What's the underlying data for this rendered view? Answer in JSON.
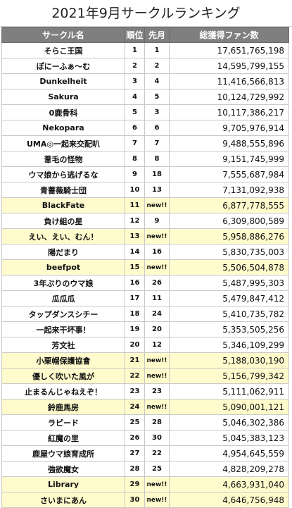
{
  "title": "2021年9月サークルランキング",
  "headers": {
    "name": "サークル名",
    "rank": "順位",
    "prev": "先月",
    "fans": "総獲得ファン数"
  },
  "highlight_color": "#fffbcc",
  "header_color": "#7f7f7f",
  "rows": [
    {
      "name": "そらこ王国",
      "rank": "1",
      "prev": "1",
      "fans": "17,651,765,198",
      "highlight": false
    },
    {
      "name": "ぽにーふぁ～む",
      "rank": "2",
      "prev": "2",
      "fans": "14,595,799,155",
      "highlight": false
    },
    {
      "name": "Dunkelheit",
      "rank": "3",
      "prev": "4",
      "fans": "11,416,566,813",
      "highlight": false
    },
    {
      "name": "Sakura",
      "rank": "4",
      "prev": "5",
      "fans": "10,124,729,992",
      "highlight": false
    },
    {
      "name": "0鹿骨科",
      "rank": "5",
      "prev": "3",
      "fans": "10,117,386,217",
      "highlight": false
    },
    {
      "name": "Nekopara",
      "rank": "6",
      "prev": "6",
      "fans": "9,705,976,914",
      "highlight": false
    },
    {
      "name": "UMA◎一起来交配叭",
      "rank": "7",
      "prev": "7",
      "fans": "9,488,555,896",
      "highlight": false
    },
    {
      "name": "葦毛の怪物",
      "rank": "8",
      "prev": "8",
      "fans": "9,151,745,999",
      "highlight": false
    },
    {
      "name": "ウマ娘から逃げるな",
      "rank": "9",
      "prev": "18",
      "fans": "7,555,687,984",
      "highlight": false
    },
    {
      "name": "青薔薇騎士団",
      "rank": "10",
      "prev": "13",
      "fans": "7,131,092,938",
      "highlight": false
    },
    {
      "name": "BlackFate",
      "rank": "11",
      "prev": "new!!",
      "fans": "6,877,778,555",
      "highlight": true
    },
    {
      "name": "負け組の星",
      "rank": "12",
      "prev": "9",
      "fans": "6,309,800,589",
      "highlight": false
    },
    {
      "name": "えい、えい、むん！",
      "rank": "13",
      "prev": "new!!",
      "fans": "5,958,886,276",
      "highlight": true
    },
    {
      "name": "陽だまり",
      "rank": "14",
      "prev": "16",
      "fans": "5,830,735,003",
      "highlight": false
    },
    {
      "name": "beefpot",
      "rank": "15",
      "prev": "new!!",
      "fans": "5,506,504,878",
      "highlight": true
    },
    {
      "name": "3年ぶりのウマ娘",
      "rank": "16",
      "prev": "26",
      "fans": "5,487,995,303",
      "highlight": false
    },
    {
      "name": "瓜瓜瓜",
      "rank": "17",
      "prev": "11",
      "fans": "5,479,847,412",
      "highlight": false
    },
    {
      "name": "タップダンスシチー",
      "rank": "18",
      "prev": "24",
      "fans": "5,410,735,782",
      "highlight": false
    },
    {
      "name": "一起来干坏事！",
      "rank": "19",
      "prev": "20",
      "fans": "5,353,505,256",
      "highlight": false
    },
    {
      "name": "芳文社",
      "rank": "20",
      "prev": "12",
      "fans": "5,346,109,299",
      "highlight": false
    },
    {
      "name": "小栗帽保護協會",
      "rank": "21",
      "prev": "new!!",
      "fans": "5,188,030,190",
      "highlight": true
    },
    {
      "name": "優しく吹いた風が",
      "rank": "22",
      "prev": "new!!",
      "fans": "5,156,799,342",
      "highlight": true
    },
    {
      "name": "止まるんじゃねえぞ！",
      "rank": "23",
      "prev": "23",
      "fans": "5,111,062,911",
      "highlight": false
    },
    {
      "name": "鈴鹿馬房",
      "rank": "24",
      "prev": "new!!",
      "fans": "5,090,001,121",
      "highlight": true
    },
    {
      "name": "ラピード",
      "rank": "25",
      "prev": "28",
      "fans": "5,046,302,386",
      "highlight": false
    },
    {
      "name": "紅魔の里",
      "rank": "26",
      "prev": "30",
      "fans": "5,045,383,123",
      "highlight": false
    },
    {
      "name": "鹿屋ウマ娘育成所",
      "rank": "27",
      "prev": "22",
      "fans": "4,954,645,559",
      "highlight": false
    },
    {
      "name": "強欲魔女",
      "rank": "28",
      "prev": "25",
      "fans": "4,828,209,278",
      "highlight": false
    },
    {
      "name": "Library",
      "rank": "29",
      "prev": "new!!",
      "fans": "4,663,931,040",
      "highlight": true
    },
    {
      "name": "さいまにあん",
      "rank": "30",
      "prev": "new!!",
      "fans": "4,646,756,948",
      "highlight": true
    }
  ]
}
